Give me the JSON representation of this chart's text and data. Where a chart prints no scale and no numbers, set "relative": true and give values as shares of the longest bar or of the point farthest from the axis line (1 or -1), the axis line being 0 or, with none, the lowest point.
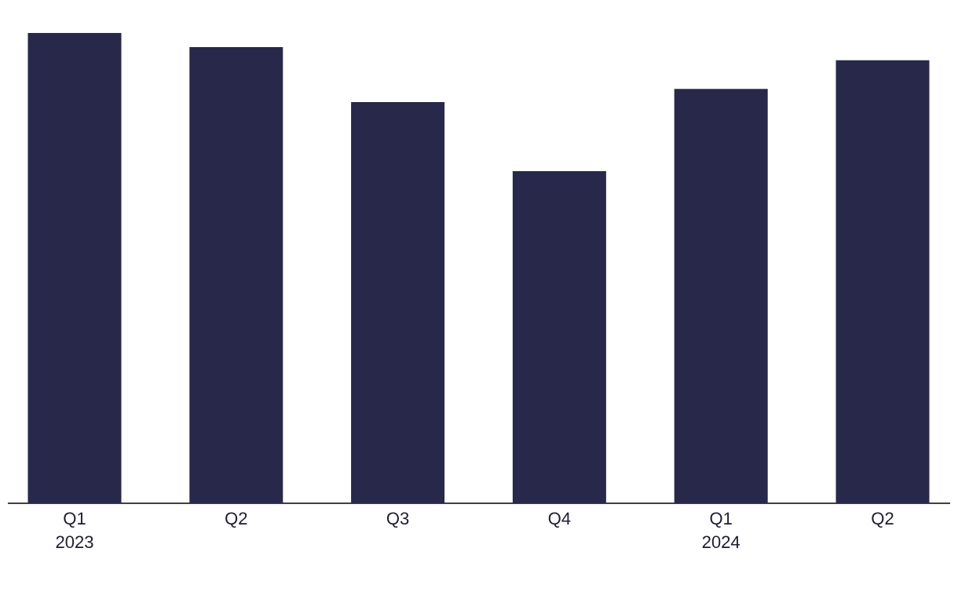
{
  "chart_data": {
    "type": "bar",
    "relative": true,
    "categories": [
      "Q1 2023",
      "Q2",
      "Q3",
      "Q4",
      "Q1 2024",
      "Q2"
    ],
    "values": [
      1,
      0.97,
      0.853,
      0.706,
      0.881,
      0.942
    ],
    "color": "#28284a"
  }
}
